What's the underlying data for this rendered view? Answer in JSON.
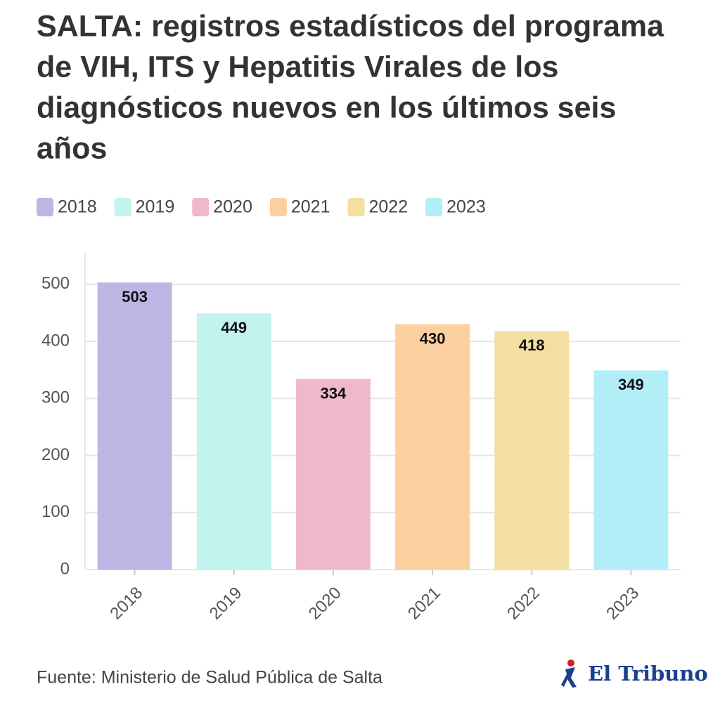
{
  "chart_data": {
    "type": "bar",
    "title": [
      "SALTA: registros estadísticos del programa",
      "de VIH, ITS y Hepatitis Virales de los",
      "diagnósticos nuevos en los últimos seis",
      "años"
    ],
    "categories": [
      "2018",
      "2019",
      "2020",
      "2021",
      "2022",
      "2023"
    ],
    "values": [
      503,
      449,
      334,
      430,
      418,
      349
    ],
    "colors": [
      "#bdb5e3",
      "#c2f3ef",
      "#f0b8c8",
      "#fccf9e",
      "#f3df9f",
      "#b1eef8"
    ],
    "ylim": [
      0,
      555
    ],
    "yticks": [
      0,
      100,
      200,
      300,
      400,
      500
    ],
    "grid": true,
    "source": "Fuente: Ministerio de Salud Pública de Salta",
    "logo": "El Tribuno"
  }
}
